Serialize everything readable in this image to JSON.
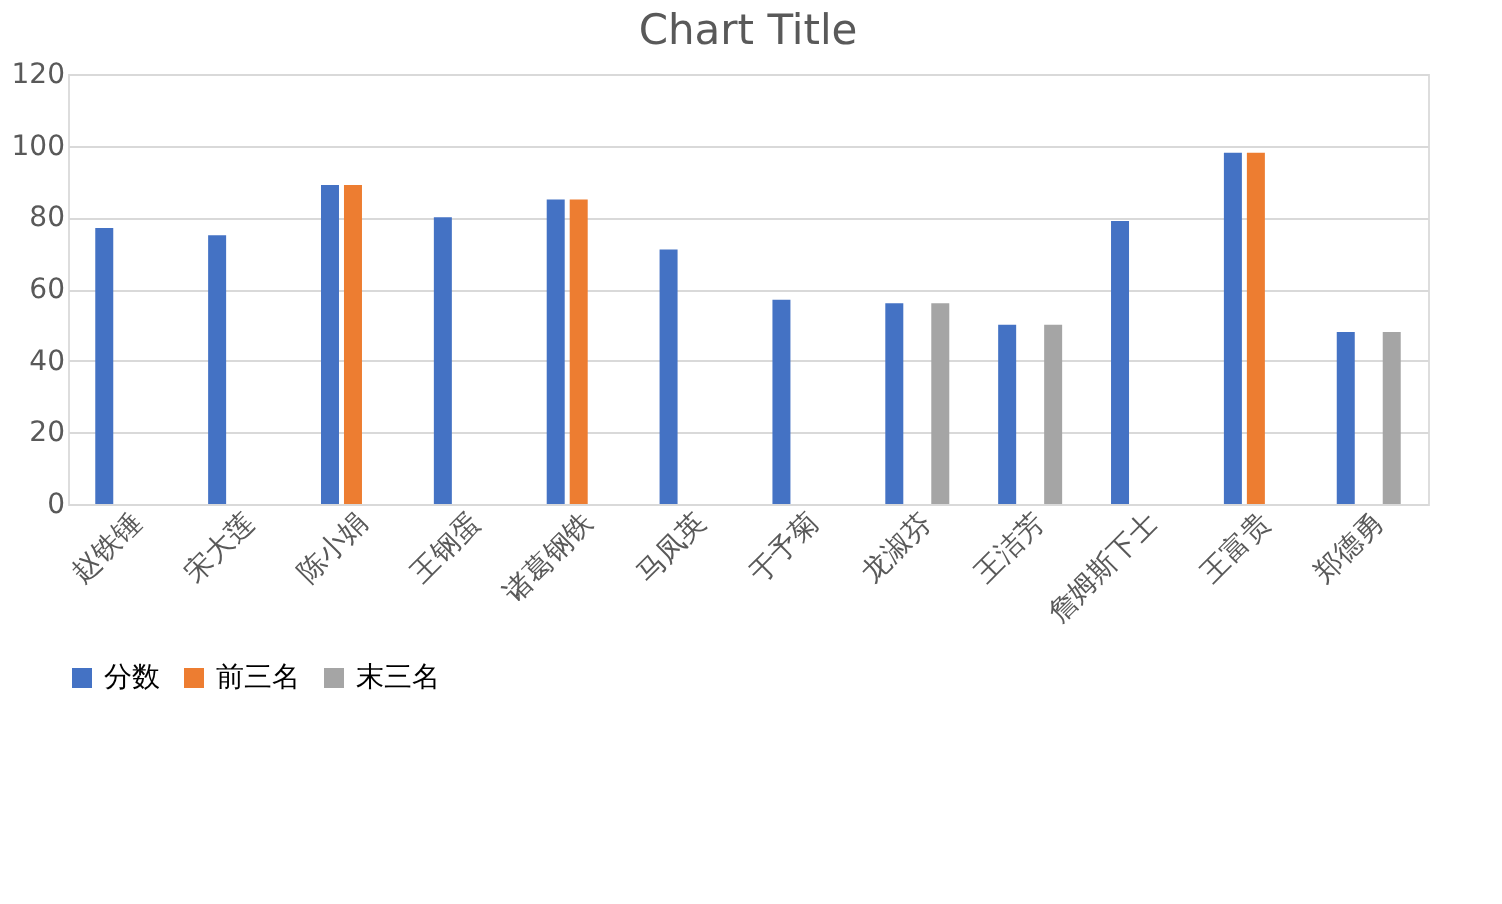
{
  "chart_data": {
    "type": "bar",
    "title": "Chart Title",
    "categories": [
      "赵铁锤",
      "宋大莲",
      "陈小娟",
      "王钢蛋",
      "诸葛钢铁",
      "马凤英",
      "于予菊",
      "龙淑芬",
      "王洁芳",
      "詹姆斯下士",
      "王富贵",
      "郑德勇"
    ],
    "series": [
      {
        "name": "分数",
        "color": "#4472c4",
        "values": [
          77,
          75,
          89,
          80,
          85,
          71,
          57,
          56,
          50,
          79,
          98,
          48
        ]
      },
      {
        "name": "前三名",
        "color": "#ed7d31",
        "values": [
          null,
          null,
          89,
          null,
          85,
          null,
          null,
          null,
          null,
          null,
          98,
          null
        ]
      },
      {
        "name": "末三名",
        "color": "#a5a5a5",
        "values": [
          null,
          null,
          null,
          null,
          null,
          null,
          null,
          56,
          50,
          null,
          null,
          48
        ]
      }
    ],
    "ylim": [
      0,
      120
    ],
    "yticks": [
      0,
      20,
      40,
      60,
      80,
      100,
      120
    ],
    "grid": "y",
    "legend": "bottom"
  }
}
